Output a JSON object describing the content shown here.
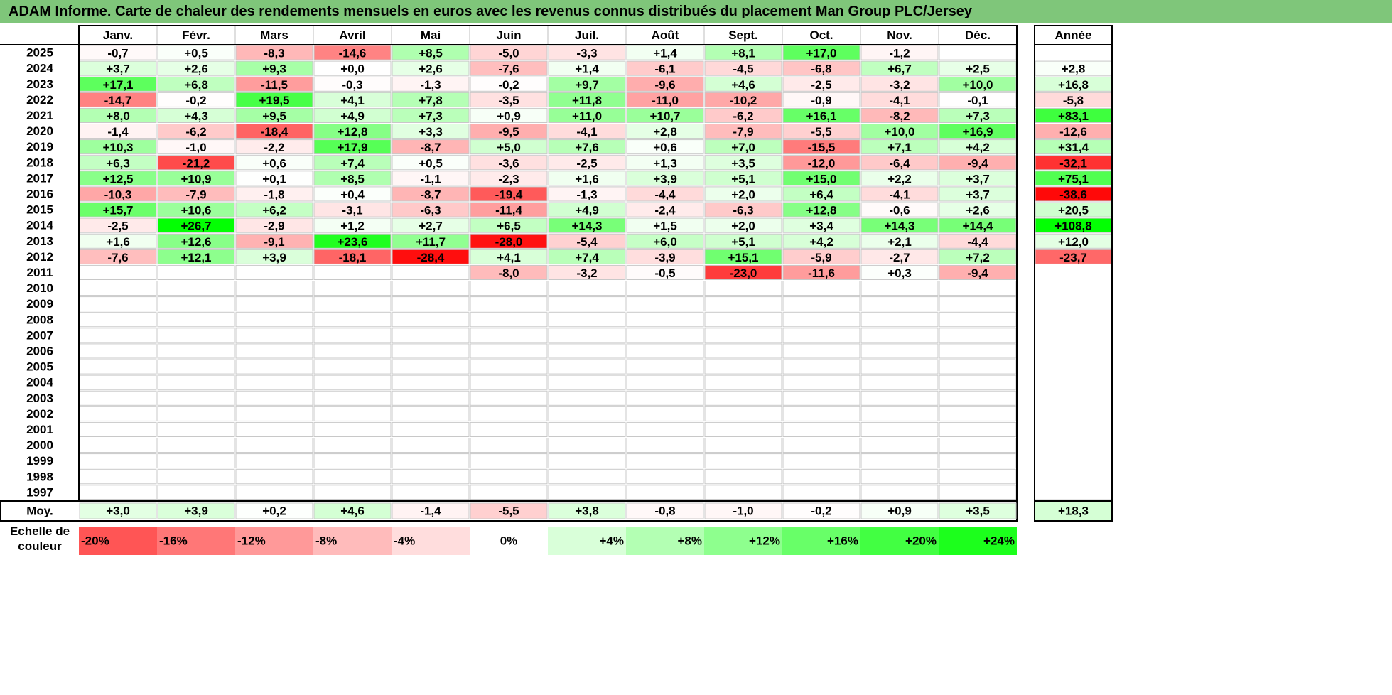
{
  "title": "ADAM Informe. Carte de chaleur des rendements mensuels en euros avec les revenus connus distribués du placement Man Group PLC/Jersey",
  "chart_data": {
    "type": "heatmap",
    "months": [
      "Janv.",
      "Févr.",
      "Mars",
      "Avril",
      "Mai",
      "Juin",
      "Juil.",
      "Août",
      "Sept.",
      "Oct.",
      "Nov.",
      "Déc."
    ],
    "year_header": "Année",
    "years": [
      "2025",
      "2024",
      "2023",
      "2022",
      "2021",
      "2020",
      "2019",
      "2018",
      "2017",
      "2016",
      "2015",
      "2014",
      "2013",
      "2012",
      "2011",
      "2010",
      "2009",
      "2008",
      "2007",
      "2006",
      "2005",
      "2004",
      "2003",
      "2002",
      "2001",
      "2000",
      "1999",
      "1998",
      "1997"
    ],
    "values": [
      [
        "-0,7",
        "+0,5",
        "-8,3",
        "-14,6",
        "+8,5",
        "-5,0",
        "-3,3",
        "+1,4",
        "+8,1",
        "+17,0",
        "-1,2",
        ""
      ],
      [
        "+3,7",
        "+2,6",
        "+9,3",
        "+0,0",
        "+2,6",
        "-7,6",
        "+1,4",
        "-6,1",
        "-4,5",
        "-6,8",
        "+6,7",
        "+2,5"
      ],
      [
        "+17,1",
        "+6,8",
        "-11,5",
        "-0,3",
        "-1,3",
        "-0,2",
        "+9,7",
        "-9,6",
        "+4,6",
        "-2,5",
        "-3,2",
        "+10,0"
      ],
      [
        "-14,7",
        "-0,2",
        "+19,5",
        "+4,1",
        "+7,8",
        "-3,5",
        "+11,8",
        "-11,0",
        "-10,2",
        "-0,9",
        "-4,1",
        "-0,1"
      ],
      [
        "+8,0",
        "+4,3",
        "+9,5",
        "+4,9",
        "+7,3",
        "+0,9",
        "+11,0",
        "+10,7",
        "-6,2",
        "+16,1",
        "-8,2",
        "+7,3"
      ],
      [
        "-1,4",
        "-6,2",
        "-18,4",
        "+12,8",
        "+3,3",
        "-9,5",
        "-4,1",
        "+2,8",
        "-7,9",
        "-5,5",
        "+10,0",
        "+16,9"
      ],
      [
        "+10,3",
        "-1,0",
        "-2,2",
        "+17,9",
        "-8,7",
        "+5,0",
        "+7,6",
        "+0,6",
        "+7,0",
        "-15,5",
        "+7,1",
        "+4,2"
      ],
      [
        "+6,3",
        "-21,2",
        "+0,6",
        "+7,4",
        "+0,5",
        "-3,6",
        "-2,5",
        "+1,3",
        "+3,5",
        "-12,0",
        "-6,4",
        "-9,4"
      ],
      [
        "+12,5",
        "+10,9",
        "+0,1",
        "+8,5",
        "-1,1",
        "-2,3",
        "+1,6",
        "+3,9",
        "+5,1",
        "+15,0",
        "+2,2",
        "+3,7"
      ],
      [
        "-10,3",
        "-7,9",
        "-1,8",
        "+0,4",
        "-8,7",
        "-19,4",
        "-1,3",
        "-4,4",
        "+2,0",
        "+6,4",
        "-4,1",
        "+3,7"
      ],
      [
        "+15,7",
        "+10,6",
        "+6,2",
        "-3,1",
        "-6,3",
        "-11,4",
        "+4,9",
        "-2,4",
        "-6,3",
        "+12,8",
        "-0,6",
        "+2,6"
      ],
      [
        "-2,5",
        "+26,7",
        "-2,9",
        "+1,2",
        "+2,7",
        "+6,5",
        "+14,3",
        "+1,5",
        "+2,0",
        "+3,4",
        "+14,3",
        "+14,4"
      ],
      [
        "+1,6",
        "+12,6",
        "-9,1",
        "+23,6",
        "+11,7",
        "-28,0",
        "-5,4",
        "+6,0",
        "+5,1",
        "+4,2",
        "+2,1",
        "-4,4"
      ],
      [
        "-7,6",
        "+12,1",
        "+3,9",
        "-18,1",
        "-28,4",
        "+4,1",
        "+7,4",
        "-3,9",
        "+15,1",
        "-5,9",
        "-2,7",
        "+7,2"
      ],
      [
        "",
        "",
        "",
        "",
        "",
        "-8,0",
        "-3,2",
        "-0,5",
        "-23,0",
        "-11,6",
        "+0,3",
        "-9,4"
      ],
      [
        "",
        "",
        "",
        "",
        "",
        "",
        "",
        "",
        "",
        "",
        "",
        ""
      ],
      [
        "",
        "",
        "",
        "",
        "",
        "",
        "",
        "",
        "",
        "",
        "",
        ""
      ],
      [
        "",
        "",
        "",
        "",
        "",
        "",
        "",
        "",
        "",
        "",
        "",
        ""
      ],
      [
        "",
        "",
        "",
        "",
        "",
        "",
        "",
        "",
        "",
        "",
        "",
        ""
      ],
      [
        "",
        "",
        "",
        "",
        "",
        "",
        "",
        "",
        "",
        "",
        "",
        ""
      ],
      [
        "",
        "",
        "",
        "",
        "",
        "",
        "",
        "",
        "",
        "",
        "",
        ""
      ],
      [
        "",
        "",
        "",
        "",
        "",
        "",
        "",
        "",
        "",
        "",
        "",
        ""
      ],
      [
        "",
        "",
        "",
        "",
        "",
        "",
        "",
        "",
        "",
        "",
        "",
        ""
      ],
      [
        "",
        "",
        "",
        "",
        "",
        "",
        "",
        "",
        "",
        "",
        "",
        ""
      ],
      [
        "",
        "",
        "",
        "",
        "",
        "",
        "",
        "",
        "",
        "",
        "",
        ""
      ],
      [
        "",
        "",
        "",
        "",
        "",
        "",
        "",
        "",
        "",
        "",
        "",
        ""
      ],
      [
        "",
        "",
        "",
        "",
        "",
        "",
        "",
        "",
        "",
        "",
        "",
        ""
      ],
      [
        "",
        "",
        "",
        "",
        "",
        "",
        "",
        "",
        "",
        "",
        "",
        ""
      ],
      [
        "",
        "",
        "",
        "",
        "",
        "",
        "",
        "",
        "",
        "",
        "",
        ""
      ]
    ],
    "annual": [
      "",
      "+2,8",
      "+16,8",
      "-5,8",
      "+83,1",
      "-12,6",
      "+31,4",
      "-32,1",
      "+75,1",
      "-38,6",
      "+20,5",
      "+108,8",
      "+12,0",
      "-23,7",
      "",
      "",
      "",
      "",
      "",
      "",
      "",
      "",
      "",
      "",
      "",
      "",
      "",
      "",
      ""
    ],
    "average_label": "Moy.",
    "averages": [
      "+3,0",
      "+3,9",
      "+0,2",
      "+4,6",
      "-1,4",
      "-5,5",
      "+3,8",
      "-0,8",
      "-1,0",
      "-0,2",
      "+0,9",
      "+3,5"
    ],
    "average_annual": "+18,3",
    "scale_label": "Echelle de couleur",
    "scale_steps": [
      "-20%",
      "-16%",
      "-12%",
      "-8%",
      "-4%",
      "0%",
      "+4%",
      "+8%",
      "+12%",
      "+16%",
      "+20%",
      "+24%"
    ],
    "colors": {
      "title_bar": "#7fc67a",
      "negative_max": "#ff0000",
      "neutral": "#ffffff",
      "positive_max": "#00ff00"
    }
  }
}
